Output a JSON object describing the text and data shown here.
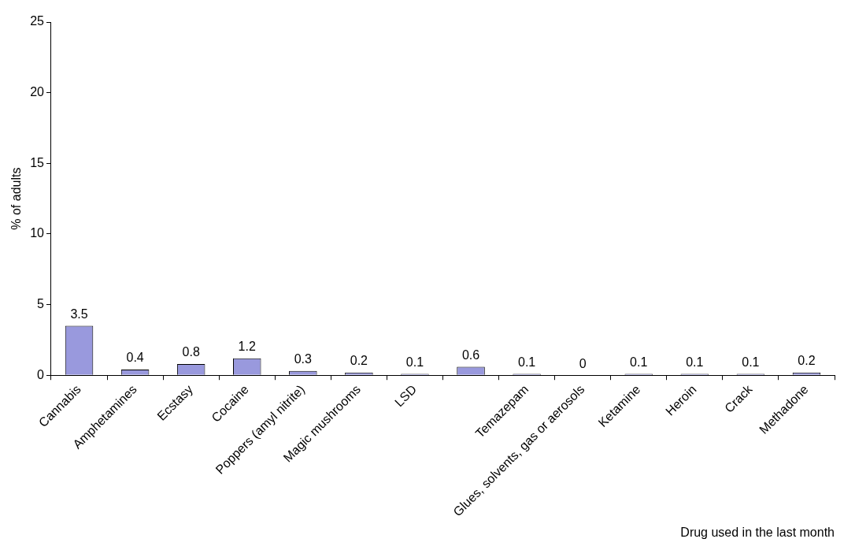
{
  "chart_data": {
    "type": "bar",
    "xlabel": "Drug used in the last month",
    "ylabel": "% of adults",
    "categories": [
      "Cannabis",
      "Amphetamines",
      "Ecstasy",
      "Cocaine",
      "Poppers (amyl nitrite)",
      "Magic mushrooms",
      "LSD",
      null,
      "Temazepam",
      "Glues, solvents, gas or aerosols",
      "Ketamine",
      "Heroin",
      "Crack",
      "Methadone"
    ],
    "values": [
      3.5,
      0.4,
      0.8,
      1.2,
      0.3,
      0.2,
      0.1,
      0.6,
      0.1,
      0,
      0.1,
      0.1,
      0.1,
      0.2
    ],
    "color": "#9999dd",
    "ylim": [
      0,
      25
    ],
    "yticks": [
      0,
      5,
      10,
      15,
      20,
      25
    ],
    "grid": false,
    "legend": false,
    "data_labels": true
  }
}
